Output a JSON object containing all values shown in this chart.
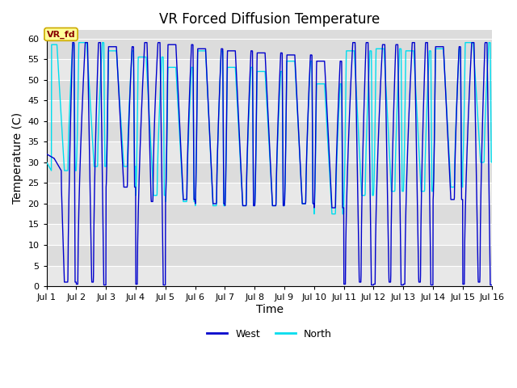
{
  "title": "VR Forced Diffusion Temperature",
  "xlabel": "Time",
  "ylabel": "Temperature (C)",
  "ylim": [
    0,
    62
  ],
  "yticks": [
    0,
    5,
    10,
    15,
    20,
    25,
    30,
    35,
    40,
    45,
    50,
    55,
    60
  ],
  "xtick_labels": [
    "Jul 1",
    "Jul 2",
    "Jul 3",
    "Jul 4",
    "Jul 5",
    "Jul 6",
    "Jul 7",
    "Jul 8",
    "Jul 9",
    "Jul 10",
    "Jul 11",
    "Jul 12",
    "Jul 13",
    "Jul 14",
    "Jul 15",
    "Jul 16"
  ],
  "west_color": "#0000CC",
  "north_color": "#00DDEE",
  "background_color": "#DCDCDC",
  "band_color_light": "#E8E8E8",
  "label_box_facecolor": "#FFFF99",
  "label_box_edgecolor": "#CCAA00",
  "label_text_color": "#880000",
  "label_text": "VR_fd",
  "legend_west": "West",
  "legend_north": "North",
  "title_fontsize": 12,
  "axis_label_fontsize": 10,
  "tick_fontsize": 8,
  "num_days": 15,
  "points_per_day": 144,
  "west_peaks": [
    59,
    59,
    58,
    59,
    58.5,
    57.5,
    57,
    56.5,
    56,
    54.5,
    59,
    58.5,
    59,
    58,
    59
  ],
  "west_mins": [
    1,
    1,
    24,
    20.5,
    21,
    20,
    19.5,
    19.5,
    20,
    19,
    1,
    1,
    1,
    21,
    1
  ],
  "north_peaks": [
    58.5,
    59,
    57,
    55.5,
    53,
    57,
    53,
    52,
    54.5,
    49,
    57,
    57.5,
    57,
    57.5,
    59
  ],
  "north_mins": [
    28,
    29,
    29,
    22,
    20.5,
    19.5,
    19.5,
    19.5,
    20,
    17.5,
    22,
    23,
    23,
    24,
    30
  ],
  "west_zero_days": [
    1,
    3,
    10,
    11,
    12,
    14
  ],
  "north_zero_days": []
}
